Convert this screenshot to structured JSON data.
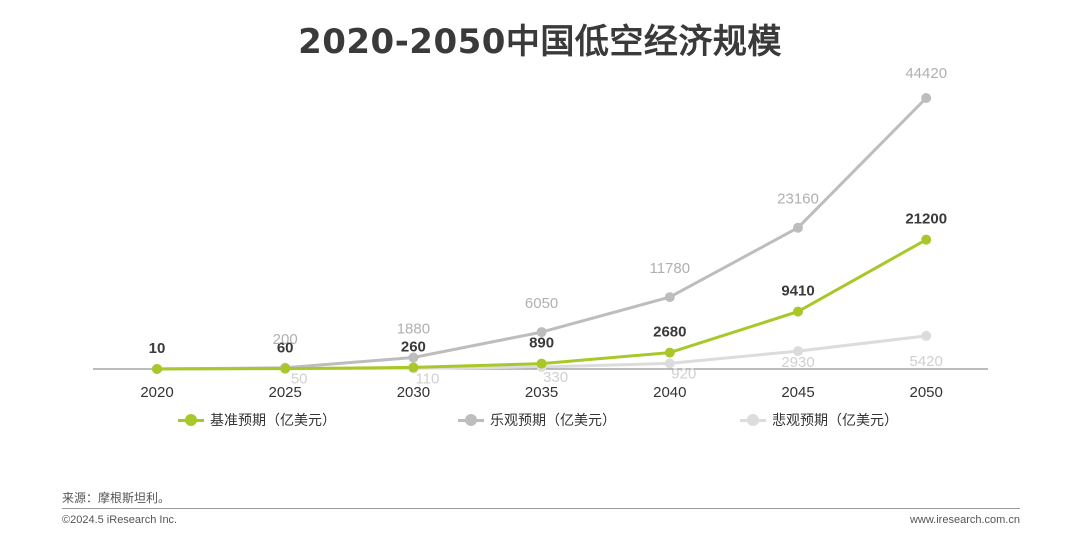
{
  "title": "2020-2050中国低空经济规模",
  "chart_data": {
    "type": "line",
    "title": "2020-2050中国低空经济规模",
    "categories": [
      "2020",
      "2025",
      "2030",
      "2035",
      "2040",
      "2045",
      "2050"
    ],
    "ylim": [
      0,
      46000
    ],
    "grid": false,
    "legend_position": "bottom",
    "series": [
      {
        "name": "基准预期（亿美元）",
        "values": [
          10,
          60,
          260,
          890,
          2680,
          9410,
          21200
        ],
        "color": "#a8c82a",
        "labels": [
          "10",
          "60",
          "260",
          "890",
          "2680",
          "9410",
          "21200"
        ]
      },
      {
        "name": "乐观预期（亿美元）",
        "values": [
          null,
          200,
          1880,
          6050,
          11780,
          23160,
          44420
        ],
        "color": "#bdbdbd",
        "labels": [
          "",
          "200",
          "1880",
          "6050",
          "11780",
          "23160",
          "44420"
        ]
      },
      {
        "name": "悲观预期（亿美元）",
        "values": [
          null,
          50,
          110,
          330,
          920,
          2930,
          5420
        ],
        "color": "#dcdcdc",
        "labels": [
          "",
          "50",
          "110",
          "330",
          "920",
          "2930",
          "5420"
        ]
      }
    ]
  },
  "legend": {
    "base": "基准预期（亿美元）",
    "optimistic": "乐观预期（亿美元）",
    "pessimistic": "悲观预期（亿美元）"
  },
  "footer": {
    "source": "来源：摩根斯坦利。",
    "copyright": "©2024.5 iResearch Inc.",
    "url": "www.iresearch.com.cn"
  }
}
